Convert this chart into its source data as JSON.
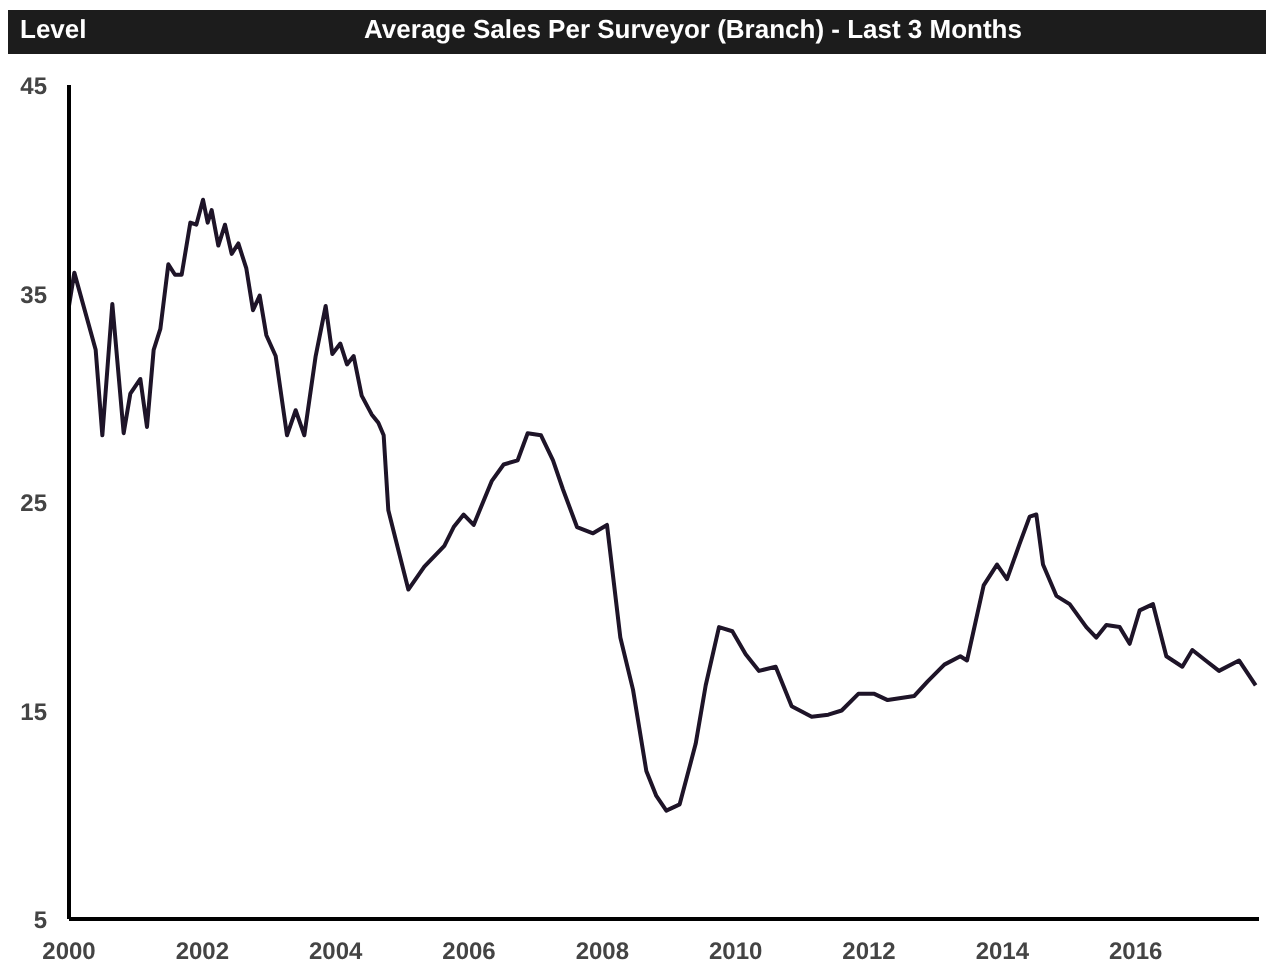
{
  "chart_data": {
    "type": "line",
    "title": "Average Sales Per Surveyor (Branch) - Last 3 Months",
    "ylabel": "Level",
    "x": [
      2000.0,
      2000.08,
      2000.4,
      2000.5,
      2000.65,
      2000.82,
      2000.92,
      2001.07,
      2001.17,
      2001.27,
      2001.37,
      2001.49,
      2001.59,
      2001.69,
      2001.82,
      2001.91,
      2002.01,
      2002.08,
      2002.14,
      2002.24,
      2002.34,
      2002.44,
      2002.54,
      2002.66,
      2002.76,
      2002.86,
      2002.96,
      2003.1,
      2003.27,
      2003.4,
      2003.53,
      2003.7,
      2003.85,
      2003.95,
      2004.07,
      2004.17,
      2004.27,
      2004.39,
      2004.54,
      2004.64,
      2004.72,
      2004.79,
      2004.94,
      2005.09,
      2005.33,
      2005.63,
      2005.77,
      2005.92,
      2006.07,
      2006.34,
      2006.52,
      2006.73,
      2006.88,
      2007.08,
      2007.26,
      2007.41,
      2007.62,
      2007.86,
      2008.07,
      2008.27,
      2008.46,
      2008.66,
      2008.81,
      2008.96,
      2009.16,
      2009.4,
      2009.55,
      2009.75,
      2009.95,
      2010.15,
      2010.35,
      2010.6,
      2010.84,
      2011.14,
      2011.39,
      2011.59,
      2011.84,
      2012.08,
      2012.28,
      2012.68,
      2012.88,
      2013.13,
      2013.37,
      2013.47,
      2013.72,
      2013.92,
      2014.07,
      2014.26,
      2014.41,
      2014.51,
      2014.61,
      2014.81,
      2015.01,
      2015.26,
      2015.41,
      2015.56,
      2015.76,
      2015.91,
      2016.06,
      2016.26,
      2016.46,
      2016.7,
      2016.85,
      2017.05,
      2017.25,
      2017.55,
      2017.8
    ],
    "series": [
      {
        "color": "#1e1428",
        "values": [
          34.4,
          36.0,
          32.3,
          28.2,
          34.5,
          28.3,
          30.2,
          30.9,
          28.6,
          32.3,
          33.3,
          36.4,
          35.9,
          35.9,
          38.4,
          38.3,
          39.5,
          38.4,
          39.0,
          37.3,
          38.3,
          36.9,
          37.4,
          36.2,
          34.2,
          34.9,
          33.0,
          32.0,
          28.2,
          29.4,
          28.2,
          32.0,
          34.4,
          32.1,
          32.6,
          31.6,
          32.0,
          30.1,
          29.2,
          28.8,
          28.2,
          24.6,
          22.7,
          20.8,
          21.9,
          22.9,
          23.8,
          24.4,
          23.9,
          26.0,
          26.8,
          27.0,
          28.3,
          28.2,
          27.0,
          25.6,
          23.8,
          23.5,
          23.9,
          18.5,
          16.0,
          12.1,
          10.9,
          10.2,
          10.5,
          13.4,
          16.2,
          19.0,
          18.8,
          17.7,
          16.9,
          17.1,
          15.2,
          14.7,
          14.8,
          15.0,
          15.8,
          15.8,
          15.5,
          15.7,
          16.4,
          17.2,
          17.6,
          17.4,
          21.0,
          22.0,
          21.3,
          23.0,
          24.3,
          24.4,
          22.0,
          20.5,
          20.1,
          19.0,
          18.5,
          19.1,
          19.0,
          18.2,
          19.8,
          20.1,
          17.6,
          17.1,
          17.9,
          17.4,
          16.9,
          17.4,
          16.2
        ]
      }
    ],
    "xlim": [
      2000,
      2017.85
    ],
    "ylim": [
      5,
      45
    ],
    "xticks": [
      2000,
      2002,
      2004,
      2006,
      2008,
      2010,
      2012,
      2014,
      2016
    ],
    "yticks": [
      5,
      15,
      25,
      35,
      45
    ],
    "grid": false,
    "line_style": "solid"
  }
}
